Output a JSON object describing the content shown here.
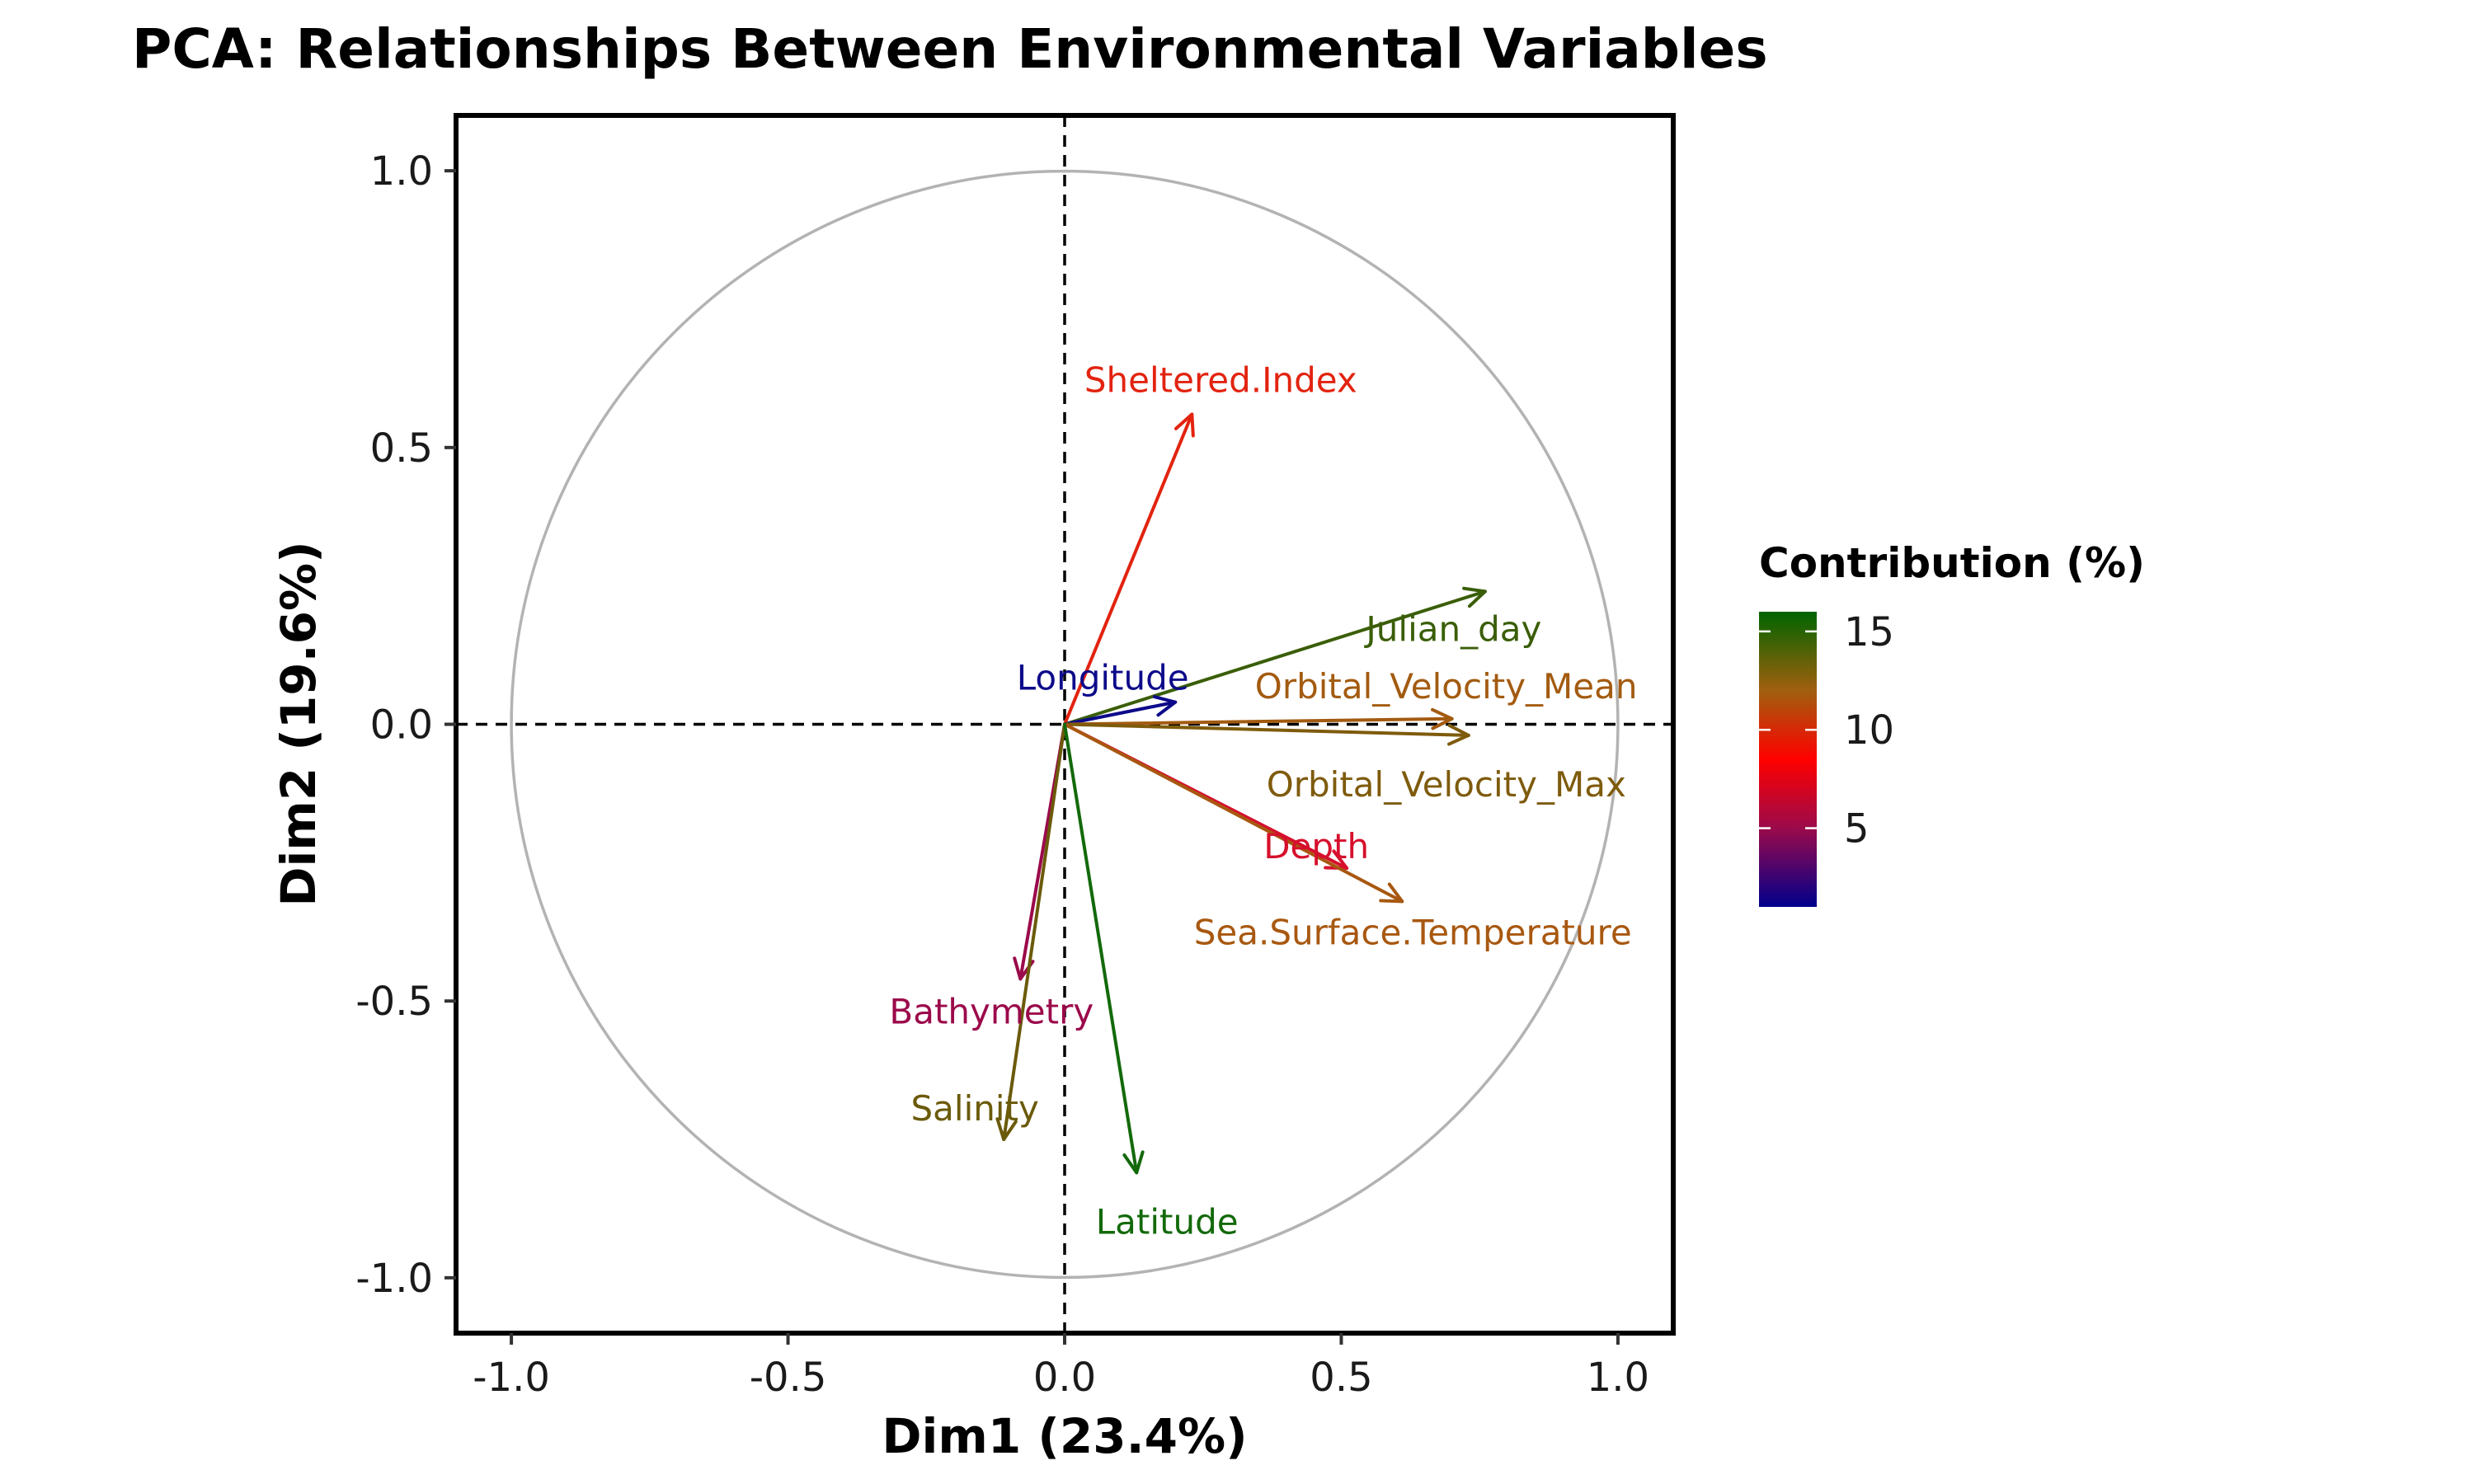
{
  "chart_data": {
    "type": "scatter",
    "subtype": "pca-correlation-circle",
    "title": "PCA: Relationships Between Environmental Variables",
    "xlabel": "Dim1 (23.4%)",
    "ylabel": "Dim2 (19.6%)",
    "xlim": [
      -1.1,
      1.1
    ],
    "ylim": [
      -1.1,
      1.1
    ],
    "xticks": [
      -1.0,
      -0.5,
      0.0,
      0.5,
      1.0
    ],
    "xtick_labels": [
      "-1.0",
      "-0.5",
      "0.0",
      "0.5",
      "1.0"
    ],
    "yticks": [
      -1.0,
      -0.5,
      0.0,
      0.5,
      1.0
    ],
    "ytick_labels": [
      "-1.0",
      "-0.5",
      "0.0",
      "0.5",
      "1.0"
    ],
    "grid": false,
    "unit_circle": true,
    "reference_lines": [
      0,
      0
    ],
    "legend": {
      "title": "Contribution (%)",
      "placement": "right",
      "range": [
        1,
        16
      ],
      "ticks": [
        5,
        10,
        15
      ],
      "tick_labels": [
        "5",
        "10",
        "15"
      ],
      "gradient": [
        {
          "value": 1,
          "color": "#00008b"
        },
        {
          "value": 5,
          "color": "#9b0a4b"
        },
        {
          "value": 8.5,
          "color": "#ff0000"
        },
        {
          "value": 12,
          "color": "#a0600e"
        },
        {
          "value": 16,
          "color": "#006400"
        }
      ]
    },
    "variables": [
      {
        "name": "Sheltered.Index",
        "x": 0.23,
        "y": 0.56,
        "contribution": 8.0,
        "color": "#e2230f"
      },
      {
        "name": "Julian_day",
        "x": 0.76,
        "y": 0.24,
        "contribution": 14.5,
        "color": "#3a5e08"
      },
      {
        "name": "Longitude",
        "x": 0.2,
        "y": 0.04,
        "contribution": 1.5,
        "color": "#0d0a8a"
      },
      {
        "name": "Orbital_Velocity_Mean",
        "x": 0.7,
        "y": 0.01,
        "contribution": 11.5,
        "color": "#a35b10"
      },
      {
        "name": "Orbital_Velocity_Max",
        "x": 0.73,
        "y": -0.02,
        "contribution": 12.5,
        "color": "#7e5b0c"
      },
      {
        "name": "Depth",
        "x": 0.51,
        "y": -0.26,
        "contribution": 7.0,
        "color": "#d6102c"
      },
      {
        "name": "Sea.Surface.Temperature",
        "x": 0.61,
        "y": -0.32,
        "contribution": 11.0,
        "color": "#a85810"
      },
      {
        "name": "Bathymetry",
        "x": -0.08,
        "y": -0.46,
        "contribution": 4.5,
        "color": "#9b0a4b"
      },
      {
        "name": "Salinity",
        "x": -0.11,
        "y": -0.75,
        "contribution": 13.0,
        "color": "#6b5a0a"
      },
      {
        "name": "Latitude",
        "x": 0.13,
        "y": -0.81,
        "contribution": 15.5,
        "color": "#13690a"
      }
    ]
  }
}
